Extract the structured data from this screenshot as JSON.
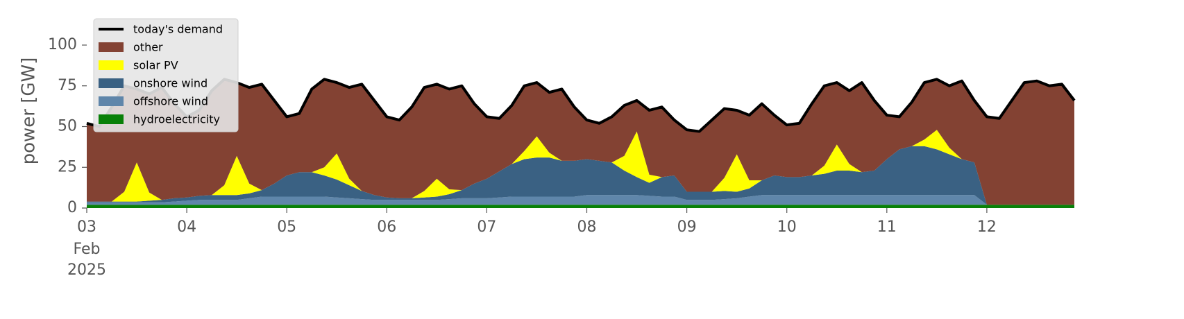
{
  "chart_data": {
    "type": "stackplot",
    "y_label": "power [GW]",
    "x": [
      "2025-02-03T00:00",
      "2025-02-03T03:00",
      "2025-02-03T06:00",
      "2025-02-03T09:00",
      "2025-02-03T12:00",
      "2025-02-03T15:00",
      "2025-02-03T18:00",
      "2025-02-03T21:00",
      "2025-02-04T00:00",
      "2025-02-04T03:00",
      "2025-02-04T06:00",
      "2025-02-04T09:00",
      "2025-02-04T12:00",
      "2025-02-04T15:00",
      "2025-02-04T18:00",
      "2025-02-04T21:00",
      "2025-02-05T00:00",
      "2025-02-05T03:00",
      "2025-02-05T06:00",
      "2025-02-05T09:00",
      "2025-02-05T12:00",
      "2025-02-05T15:00",
      "2025-02-05T18:00",
      "2025-02-05T21:00",
      "2025-02-06T00:00",
      "2025-02-06T03:00",
      "2025-02-06T06:00",
      "2025-02-06T09:00",
      "2025-02-06T12:00",
      "2025-02-06T15:00",
      "2025-02-06T18:00",
      "2025-02-06T21:00",
      "2025-02-07T00:00",
      "2025-02-07T03:00",
      "2025-02-07T06:00",
      "2025-02-07T09:00",
      "2025-02-07T12:00",
      "2025-02-07T15:00",
      "2025-02-07T18:00",
      "2025-02-07T21:00",
      "2025-02-08T00:00",
      "2025-02-08T03:00",
      "2025-02-08T06:00",
      "2025-02-08T09:00",
      "2025-02-08T12:00",
      "2025-02-08T15:00",
      "2025-02-08T18:00",
      "2025-02-08T21:00",
      "2025-02-09T00:00",
      "2025-02-09T03:00",
      "2025-02-09T06:00",
      "2025-02-09T09:00",
      "2025-02-09T12:00",
      "2025-02-09T15:00",
      "2025-02-09T18:00",
      "2025-02-09T21:00",
      "2025-02-10T00:00",
      "2025-02-10T03:00",
      "2025-02-10T06:00",
      "2025-02-10T09:00",
      "2025-02-10T12:00",
      "2025-02-10T15:00",
      "2025-02-10T18:00",
      "2025-02-10T21:00",
      "2025-02-11T00:00",
      "2025-02-11T03:00",
      "2025-02-11T06:00",
      "2025-02-11T09:00",
      "2025-02-11T12:00",
      "2025-02-11T15:00",
      "2025-02-11T18:00",
      "2025-02-11T21:00",
      "2025-02-12T00:00",
      "2025-02-12T03:00",
      "2025-02-12T06:00",
      "2025-02-12T09:00",
      "2025-02-12T12:00",
      "2025-02-12T15:00",
      "2025-02-12T18:00",
      "2025-02-12T21:00"
    ],
    "series": [
      {
        "name": "hydroelectricity",
        "color": "#088008",
        "values": [
          2,
          2,
          2,
          2,
          2,
          2,
          2,
          2,
          2,
          2,
          2,
          2,
          2,
          2,
          2,
          2,
          2,
          2,
          2,
          2,
          2,
          2,
          2,
          2,
          2,
          2,
          2,
          2,
          2,
          2,
          2,
          2,
          2,
          2,
          2,
          2,
          2,
          2,
          2,
          2,
          2,
          2,
          2,
          2,
          2,
          2,
          2,
          2,
          2,
          2,
          2,
          2,
          2,
          2,
          2,
          2,
          2,
          2,
          2,
          2,
          2,
          2,
          2,
          2,
          2,
          2,
          2,
          2,
          2,
          2,
          2,
          2,
          2,
          2,
          2,
          2,
          2,
          2,
          2,
          2
        ]
      },
      {
        "name": "offshore wind",
        "color": "#5f86aa",
        "values": [
          1.5,
          1.5,
          1.5,
          1.5,
          1.5,
          1.5,
          1.5,
          2,
          2.5,
          3,
          3,
          3,
          3,
          4,
          5,
          5,
          5,
          5,
          5,
          5,
          4.5,
          4,
          3.5,
          3,
          3,
          3,
          3,
          3,
          3,
          3.5,
          4,
          4,
          4,
          4.5,
          5,
          5,
          5,
          5,
          5,
          5,
          6,
          6,
          6,
          6,
          6,
          5.5,
          5,
          5,
          3,
          3,
          3,
          3.5,
          4,
          5,
          6,
          6,
          6,
          6,
          6,
          6,
          6,
          6,
          6,
          6,
          6,
          6,
          6,
          6,
          6,
          6,
          6,
          6,
          0,
          0,
          0,
          0,
          0,
          0,
          0,
          0
        ]
      },
      {
        "name": "onshore wind",
        "color": "#3a6183",
        "values": [
          0.5,
          0.5,
          0.5,
          0.5,
          0.5,
          1,
          1.5,
          2,
          2,
          2.5,
          3,
          3,
          3,
          3,
          4,
          8,
          13,
          15,
          15,
          13,
          11,
          8,
          5,
          3,
          1.5,
          1,
          1,
          1.5,
          2,
          3,
          5,
          9,
          12,
          16,
          20,
          23,
          24,
          24,
          22,
          22,
          22,
          21,
          20,
          15,
          11,
          8,
          12,
          13,
          5,
          5,
          5,
          5,
          4,
          5,
          9,
          12,
          11,
          11,
          12,
          13,
          15,
          15,
          14,
          15,
          22,
          28,
          30,
          30,
          28,
          25,
          22,
          20,
          0,
          0,
          0,
          0,
          0,
          0,
          0,
          0
        ]
      },
      {
        "name": "solar PV",
        "color": "#ffff00",
        "values": [
          0,
          0,
          0,
          6,
          24,
          5,
          0,
          0,
          0,
          0,
          0,
          6,
          24,
          6,
          0,
          0,
          0,
          0,
          0,
          5,
          16,
          4,
          0,
          0,
          0,
          0,
          0,
          4,
          11,
          3,
          0,
          0,
          0,
          0,
          0,
          5,
          13,
          3,
          0,
          0,
          0,
          0,
          0,
          9,
          28,
          5,
          0,
          0,
          0,
          0,
          0,
          8,
          23,
          5,
          0,
          0,
          0,
          0,
          0,
          5,
          16,
          4,
          0,
          0,
          0,
          0,
          0,
          4,
          12,
          4,
          0,
          0,
          0,
          0,
          0,
          0,
          0,
          0,
          0,
          0
        ]
      },
      {
        "name": "other",
        "color": "#834233",
        "values": [
          48,
          46,
          58,
          65,
          45,
          60.5,
          69,
          58,
          49.5,
          52.5,
          64,
          65,
          45,
          59,
          65,
          51,
          36,
          36,
          51,
          54,
          43.5,
          56,
          65.5,
          58,
          49.5,
          48,
          56,
          63.5,
          58,
          61.5,
          64,
          49,
          38,
          32.5,
          36,
          40,
          33,
          37,
          44,
          33,
          24,
          23,
          28,
          31,
          19,
          39.5,
          43,
          34,
          38,
          37,
          44,
          42.5,
          27,
          40,
          47,
          37,
          32,
          33,
          44,
          49,
          38,
          45,
          55,
          43,
          27,
          20,
          27,
          35,
          31,
          38,
          48,
          38,
          54,
          53,
          64,
          75,
          76,
          73,
          74,
          64
        ]
      }
    ],
    "demand": {
      "name": "today's demand",
      "color": "#000000",
      "values": [
        52,
        50,
        62,
        75,
        73,
        70,
        74,
        64,
        56,
        60,
        72,
        79,
        77,
        74,
        76,
        66,
        56,
        58,
        73,
        79,
        77,
        74,
        76,
        66,
        56,
        54,
        62,
        74,
        76,
        73,
        75,
        64,
        56,
        55,
        63,
        75,
        77,
        71,
        73,
        62,
        54,
        52,
        56,
        63,
        66,
        60,
        62,
        54,
        48,
        47,
        54,
        61,
        60,
        57,
        64,
        57,
        51,
        52,
        64,
        75,
        77,
        72,
        77,
        66,
        57,
        56,
        65,
        77,
        79,
        75,
        78,
        66,
        56,
        55,
        66,
        77,
        78,
        75,
        76,
        66
      ]
    },
    "xlim": [
      "2025-02-03T00:00",
      "2025-02-12T21:00"
    ],
    "xticks": [
      {
        "value": "2025-02-03T00:00",
        "label": "03"
      },
      {
        "value": "2025-02-04T00:00",
        "label": "04"
      },
      {
        "value": "2025-02-05T00:00",
        "label": "05"
      },
      {
        "value": "2025-02-06T00:00",
        "label": "06"
      },
      {
        "value": "2025-02-07T00:00",
        "label": "07"
      },
      {
        "value": "2025-02-08T00:00",
        "label": "08"
      },
      {
        "value": "2025-02-09T00:00",
        "label": "09"
      },
      {
        "value": "2025-02-10T00:00",
        "label": "10"
      },
      {
        "value": "2025-02-11T00:00",
        "label": "11"
      },
      {
        "value": "2025-02-12T00:00",
        "label": "12"
      }
    ],
    "x_date_label": [
      "Feb",
      "2025"
    ],
    "ylim": [
      0,
      120
    ],
    "yticks": [
      0,
      25,
      50,
      75,
      100
    ],
    "legend": "upper left"
  }
}
